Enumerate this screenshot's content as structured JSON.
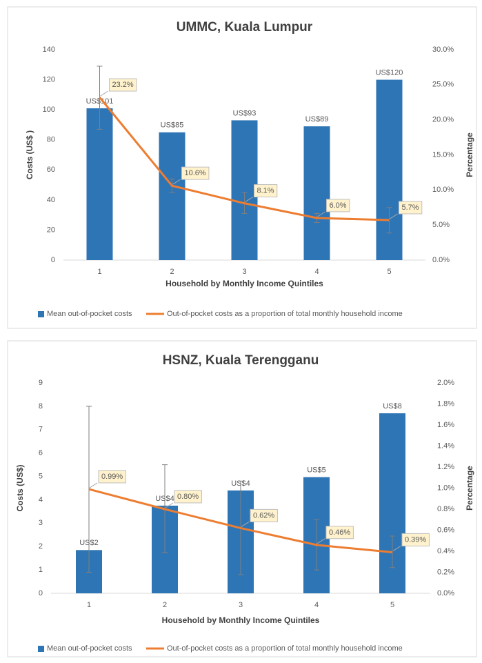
{
  "chart_data": [
    {
      "type": "combo",
      "title": "UMMC, Kuala Lumpur",
      "x_label": "Household by Monthly Income Quintiles",
      "y_label": "Costs (US$ )",
      "y2_label": "Percentage",
      "categories": [
        "1",
        "2",
        "3",
        "4",
        "5"
      ],
      "ylim": [
        0,
        140
      ],
      "yticks": [
        0,
        20,
        40,
        60,
        80,
        100,
        120,
        140
      ],
      "y2lim": [
        0,
        30
      ],
      "y2ticks": [
        {
          "value": 0,
          "label": "0.0%"
        },
        {
          "value": 5,
          "label": "5.0%"
        },
        {
          "value": 10,
          "label": "10.0%"
        },
        {
          "value": 15,
          "label": "15.0%"
        },
        {
          "value": 20,
          "label": "20.0%"
        },
        {
          "value": 25,
          "label": "25.0%"
        },
        {
          "value": 30,
          "label": "30.0%"
        }
      ],
      "series": [
        {
          "name": "Mean out-of-pocket costs",
          "kind": "bar",
          "color": "#2e75b6",
          "values": [
            101,
            85,
            93,
            89,
            120
          ],
          "value_labels": [
            "US$101",
            "US$85",
            "US$93",
            "US$89",
            "US$120"
          ],
          "error_low": [
            87,
            45,
            31,
            25,
            18
          ],
          "error_high": [
            129,
            54,
            45,
            31,
            35
          ]
        },
        {
          "name": "Out-of-pocket costs as a proportion of total monthly household income",
          "kind": "line",
          "axis": "y2",
          "color": "#ed7d31",
          "values": [
            23.2,
            10.6,
            8.1,
            6.0,
            5.7
          ],
          "value_labels": [
            "23.2%",
            "10.6%",
            "8.1%",
            "6.0%",
            "5.7%"
          ]
        }
      ]
    },
    {
      "type": "combo",
      "title": "HSNZ, Kuala Terengganu",
      "x_label": "Household by Monthly Income Quintiles",
      "y_label": "Costs (US$)",
      "y2_label": "Percentage",
      "categories": [
        "1",
        "2",
        "3",
        "4",
        "5"
      ],
      "ylim": [
        0,
        9
      ],
      "yticks": [
        0,
        1,
        2,
        3,
        4,
        5,
        6,
        7,
        8,
        9
      ],
      "y2lim": [
        0,
        2
      ],
      "y2ticks": [
        {
          "value": 0,
          "label": "0.0%"
        },
        {
          "value": 0.2,
          "label": "0.2%"
        },
        {
          "value": 0.4,
          "label": "0.4%"
        },
        {
          "value": 0.6,
          "label": "0.6%"
        },
        {
          "value": 0.8,
          "label": "0.8%"
        },
        {
          "value": 1.0,
          "label": "1.0%"
        },
        {
          "value": 1.2,
          "label": "1.2%"
        },
        {
          "value": 1.4,
          "label": "1.4%"
        },
        {
          "value": 1.6,
          "label": "1.6%"
        },
        {
          "value": 1.8,
          "label": "1.8%"
        },
        {
          "value": 2.0,
          "label": "2.0%"
        }
      ],
      "series": [
        {
          "name": "Mean out-of-pocket costs",
          "kind": "bar",
          "color": "#2e75b6",
          "values": [
            1.85,
            3.75,
            4.4,
            4.97,
            7.7
          ],
          "value_labels": [
            "US$2",
            "US$4",
            "US$4",
            "US$5",
            "US$8"
          ],
          "error_low": [
            0.9,
            1.75,
            0.8,
            1.0,
            1.1
          ],
          "error_high": [
            8.0,
            5.5,
            4.8,
            3.15,
            2.45
          ]
        },
        {
          "name": "Out-of-pocket costs as a proportion of total monthly household income",
          "kind": "line",
          "axis": "y2",
          "color": "#ed7d31",
          "values": [
            0.99,
            0.8,
            0.62,
            0.46,
            0.39
          ],
          "value_labels": [
            "0.99%",
            "0.80%",
            "0.62%",
            "0.46%",
            "0.39%"
          ]
        }
      ]
    }
  ]
}
